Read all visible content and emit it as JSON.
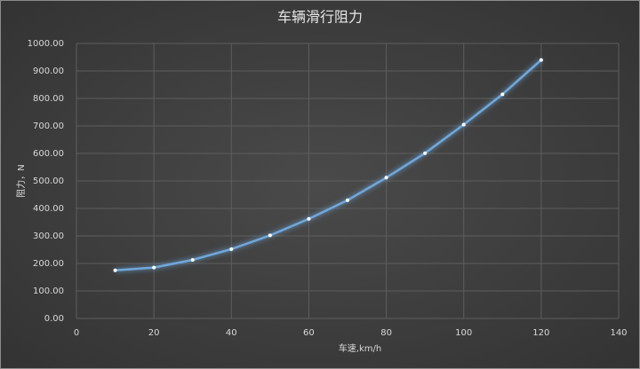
{
  "chart_data": {
    "type": "line",
    "title": "车辆滑行阻力",
    "x_label": "车速,km/h",
    "y_label": "阻力，N",
    "x": [
      10,
      20,
      30,
      40,
      50,
      60,
      70,
      80,
      90,
      100,
      110,
      120
    ],
    "values": [
      175,
      185,
      213,
      252,
      302,
      362,
      430,
      512,
      601,
      705,
      815,
      940
    ],
    "color": "#6fa8dc",
    "xlim": [
      0,
      140
    ],
    "xticks": [
      0,
      20,
      40,
      60,
      80,
      100,
      120,
      140
    ],
    "ylim": [
      0,
      1000
    ],
    "yticks": [
      {
        "value": 0,
        "label": "0.00"
      },
      {
        "value": 100,
        "label": "100.00"
      },
      {
        "value": 200,
        "label": "200.00"
      },
      {
        "value": 300,
        "label": "300.00"
      },
      {
        "value": 400,
        "label": "400.00"
      },
      {
        "value": 500,
        "label": "500.00"
      },
      {
        "value": 600,
        "label": "600.00"
      },
      {
        "value": 700,
        "label": "700.00"
      },
      {
        "value": 800,
        "label": "800.00"
      },
      {
        "value": 900,
        "label": "900.00"
      },
      {
        "value": 1000,
        "label": "1000.00"
      }
    ],
    "grid": true
  }
}
